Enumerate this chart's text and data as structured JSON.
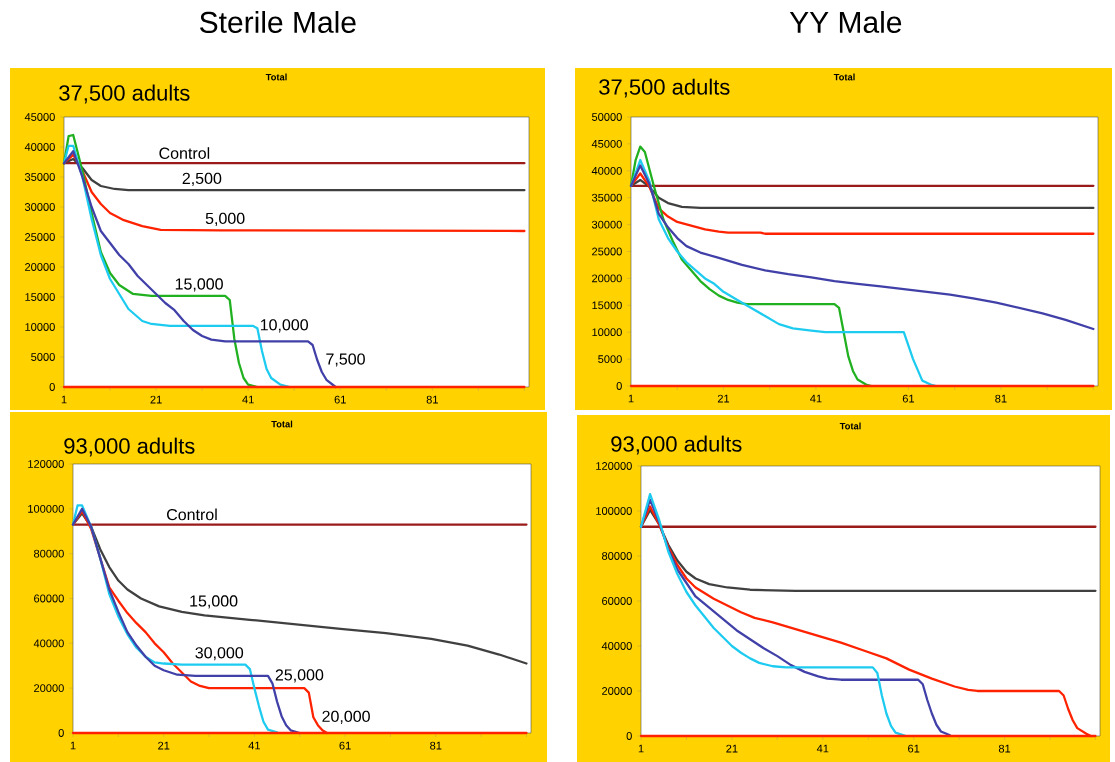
{
  "chart_data": [
    {
      "type": "line",
      "title": "Total",
      "subtitle": "37,500 adults",
      "annotations": [
        "Sterile Male"
      ],
      "marker": "none",
      "xlim": [
        1,
        102
      ],
      "xticks": [
        1,
        {
          "value": 11,
          "label": null
        },
        21,
        {
          "value": 31,
          "label": null
        },
        41,
        {
          "value": 51,
          "label": null
        },
        61,
        {
          "value": 71,
          "label": null
        },
        81,
        {
          "value": 91,
          "label": null
        },
        {
          "value": 101,
          "label": null
        }
      ],
      "ylim": [
        0,
        45000
      ],
      "yticks": [
        0,
        5000,
        10000,
        15000,
        20000,
        25000,
        30000,
        35000,
        40000,
        45000
      ],
      "series": [
        {
          "name": "Control",
          "color": "#9B1B1B",
          "x": [
            1,
            101
          ],
          "values": [
            37300,
            37300
          ]
        },
        {
          "name": "2,500",
          "color": "#404040",
          "x": [
            1,
            3,
            5,
            7,
            9,
            12,
            15,
            101
          ],
          "values": [
            37300,
            38000,
            36500,
            34500,
            33500,
            33000,
            32800,
            32800
          ]
        },
        {
          "name": "5,000",
          "color": "#FF2200",
          "x": [
            1,
            3,
            5,
            7,
            9,
            11,
            14,
            18,
            22,
            35,
            101
          ],
          "values": [
            37300,
            38700,
            36000,
            32500,
            30500,
            29000,
            27800,
            26800,
            26200,
            26100,
            26000
          ]
        },
        {
          "name": "15,000",
          "color": "#20B020",
          "x": [
            1,
            2,
            3,
            5,
            7,
            9,
            11,
            13,
            16,
            20,
            36,
            37,
            38,
            39,
            40,
            41,
            43
          ],
          "values": [
            37300,
            41800,
            42000,
            36000,
            29000,
            22500,
            19000,
            17000,
            15500,
            15200,
            15200,
            14500,
            8000,
            4000,
            1500,
            400,
            0
          ]
        },
        {
          "name": "10,000",
          "color": "#1ECBF0",
          "x": [
            1,
            2,
            3,
            5,
            7,
            9,
            11,
            13,
            15,
            18,
            20,
            24,
            42,
            43,
            44,
            45,
            46,
            48,
            50
          ],
          "values": [
            37300,
            40200,
            40200,
            35000,
            28000,
            22000,
            18000,
            15500,
            13000,
            11000,
            10500,
            10200,
            10200,
            9800,
            6000,
            3000,
            1500,
            400,
            0
          ]
        },
        {
          "name": "7,500",
          "color": "#4040A8",
          "x": [
            1,
            3,
            5,
            7,
            9,
            11,
            13,
            15,
            17,
            19,
            21,
            23,
            25,
            27,
            29,
            31,
            33,
            36,
            54,
            55,
            56,
            57,
            58,
            60
          ],
          "values": [
            37300,
            39300,
            35000,
            30000,
            26000,
            24000,
            22000,
            20500,
            18500,
            17000,
            15500,
            14000,
            12800,
            11000,
            9500,
            8500,
            7900,
            7600,
            7600,
            7000,
            4500,
            2500,
            1200,
            0
          ]
        },
        {
          "color": "#FF2200",
          "x": [
            1,
            101
          ],
          "values": [
            0,
            0
          ]
        }
      ]
    },
    {
      "type": "line",
      "title": "Total",
      "subtitle": "37,500 adults",
      "annotations": [
        "YY Male"
      ],
      "marker": "none",
      "xlim": [
        1,
        102
      ],
      "xticks": [
        1,
        {
          "value": 11,
          "label": null
        },
        21,
        {
          "value": 31,
          "label": null
        },
        41,
        {
          "value": 51,
          "label": null
        },
        61,
        {
          "value": 71,
          "label": null
        },
        81,
        {
          "value": 91,
          "label": null
        },
        {
          "value": 101,
          "label": null
        }
      ],
      "ylim": [
        0,
        50000
      ],
      "yticks": [
        0,
        5000,
        10000,
        15000,
        20000,
        25000,
        30000,
        35000,
        40000,
        45000,
        50000
      ],
      "series": [
        {
          "color": "#9B1B1B",
          "x": [
            1,
            101
          ],
          "values": [
            37200,
            37200
          ]
        },
        {
          "color": "#404040",
          "x": [
            1,
            3,
            5,
            7,
            9,
            12,
            16,
            101
          ],
          "values": [
            37200,
            38300,
            37000,
            35000,
            34000,
            33300,
            33100,
            33100
          ]
        },
        {
          "color": "#FF2200",
          "x": [
            1,
            3,
            5,
            7,
            9,
            11,
            14,
            17,
            20,
            22,
            29,
            30,
            101
          ],
          "values": [
            37200,
            39500,
            37000,
            33000,
            31500,
            30500,
            29800,
            29100,
            28700,
            28500,
            28500,
            28300,
            28300
          ]
        },
        {
          "color": "#20B020",
          "x": [
            1,
            2,
            3,
            4,
            6,
            8,
            10,
            12,
            14,
            16,
            18,
            20,
            22,
            24,
            26,
            45,
            46,
            47,
            48,
            49,
            50,
            52,
            53
          ],
          "values": [
            37200,
            42000,
            44500,
            43500,
            37000,
            31000,
            27000,
            23500,
            21500,
            19500,
            18000,
            16800,
            16000,
            15500,
            15200,
            15200,
            14500,
            10000,
            5500,
            2800,
            1200,
            200,
            0
          ]
        },
        {
          "color": "#1ECBF0",
          "x": [
            1,
            3,
            5,
            7,
            9,
            11,
            13,
            15,
            17,
            19,
            21,
            24,
            27,
            30,
            33,
            36,
            40,
            43,
            60,
            61,
            62,
            63,
            64,
            66,
            67
          ],
          "values": [
            37200,
            42000,
            38000,
            31000,
            27500,
            25000,
            23000,
            21500,
            20000,
            19000,
            17500,
            16000,
            14500,
            13000,
            11500,
            10700,
            10300,
            10000,
            10000,
            7500,
            5000,
            3000,
            1000,
            200,
            0
          ]
        },
        {
          "color": "#4040A8",
          "x": [
            1,
            3,
            5,
            7,
            9,
            11,
            13,
            16,
            20,
            25,
            30,
            35,
            40,
            45,
            50,
            55,
            60,
            65,
            70,
            75,
            80,
            85,
            90,
            95,
            101
          ],
          "values": [
            37200,
            41000,
            37500,
            32000,
            29500,
            27500,
            26000,
            24800,
            23800,
            22500,
            21500,
            20800,
            20200,
            19500,
            19000,
            18500,
            18000,
            17500,
            17000,
            16300,
            15500,
            14500,
            13500,
            12300,
            10600
          ]
        },
        {
          "color": "#FF2200",
          "x": [
            1,
            101
          ],
          "values": [
            0,
            0
          ]
        }
      ]
    },
    {
      "type": "line",
      "title": "Total",
      "subtitle": "93,000 adults",
      "marker": "none",
      "xlim": [
        1,
        102
      ],
      "xticks": [
        1,
        {
          "value": 11,
          "label": null
        },
        21,
        {
          "value": 31,
          "label": null
        },
        41,
        {
          "value": 51,
          "label": null
        },
        61,
        {
          "value": 71,
          "label": null
        },
        81,
        {
          "value": 91,
          "label": null
        },
        {
          "value": 101,
          "label": null
        }
      ],
      "ylim": [
        0,
        120000
      ],
      "yticks": [
        0,
        20000,
        40000,
        60000,
        80000,
        100000,
        120000
      ],
      "series": [
        {
          "name": "Control",
          "color": "#9B1B1B",
          "x": [
            1,
            101
          ],
          "values": [
            93000,
            93000
          ]
        },
        {
          "name": "15,000",
          "color": "#404040",
          "x": [
            1,
            3,
            5,
            7,
            9,
            11,
            13,
            16,
            20,
            25,
            30,
            40,
            50,
            60,
            70,
            80,
            88,
            95,
            101
          ],
          "values": [
            93000,
            98000,
            92000,
            82000,
            74000,
            68000,
            64000,
            60000,
            56500,
            54000,
            52500,
            50500,
            48500,
            46500,
            44500,
            42000,
            39000,
            35000,
            31000
          ]
        },
        {
          "name": "20,000",
          "color": "#FF2200",
          "x": [
            1,
            3,
            5,
            7,
            9,
            11,
            13,
            15,
            17,
            19,
            21,
            23,
            25,
            27,
            29,
            31,
            52,
            53,
            54,
            55,
            56,
            57
          ],
          "values": [
            93000,
            99000,
            91000,
            78000,
            65000,
            59000,
            53500,
            49000,
            45000,
            40000,
            36000,
            31000,
            27000,
            23000,
            21000,
            20000,
            20000,
            18000,
            7000,
            3500,
            1200,
            0
          ]
        },
        {
          "name": "30,000",
          "color": "#1ECBF0",
          "x": [
            1,
            2,
            3,
            5,
            7,
            9,
            11,
            13,
            15,
            17,
            19,
            21,
            25,
            39,
            40,
            41,
            42,
            43,
            44,
            46
          ],
          "values": [
            93000,
            101500,
            101500,
            92000,
            78000,
            62000,
            52000,
            44000,
            38000,
            34000,
            31500,
            31000,
            30500,
            30500,
            28500,
            20000,
            12000,
            5000,
            1500,
            300
          ]
        },
        {
          "name": "25,000",
          "color": "#4040A8",
          "x": [
            1,
            3,
            5,
            7,
            9,
            11,
            13,
            15,
            17,
            19,
            21,
            24,
            28,
            44,
            45,
            46,
            47,
            48,
            49,
            51
          ],
          "values": [
            93000,
            100000,
            92000,
            78000,
            64000,
            54000,
            45000,
            39000,
            34000,
            30000,
            28000,
            26000,
            25500,
            25500,
            22000,
            14000,
            7500,
            3500,
            1200,
            0
          ]
        },
        {
          "color": "#FF2200",
          "x": [
            1,
            101
          ],
          "values": [
            0,
            0
          ]
        }
      ]
    },
    {
      "type": "line",
      "title": "Total",
      "subtitle": "93,000 adults",
      "marker": "none",
      "xlim": [
        1,
        102
      ],
      "xticks": [
        1,
        {
          "value": 11,
          "label": null
        },
        21,
        {
          "value": 31,
          "label": null
        },
        41,
        {
          "value": 51,
          "label": null
        },
        61,
        {
          "value": 71,
          "label": null
        },
        81,
        {
          "value": 91,
          "label": null
        },
        {
          "value": 101,
          "label": null
        }
      ],
      "ylim": [
        0,
        120000
      ],
      "yticks": [
        0,
        20000,
        40000,
        60000,
        80000,
        100000,
        120000
      ],
      "series": [
        {
          "color": "#9B1B1B",
          "x": [
            1,
            101
          ],
          "values": [
            93000,
            93000
          ]
        },
        {
          "color": "#404040",
          "x": [
            1,
            3,
            5,
            7,
            9,
            11,
            13,
            16,
            20,
            25,
            35,
            101
          ],
          "values": [
            93000,
            100500,
            94000,
            85000,
            78000,
            73000,
            70000,
            67500,
            66000,
            65000,
            64500,
            64500
          ]
        },
        {
          "color": "#FF2200",
          "x": [
            1,
            3,
            5,
            7,
            9,
            11,
            13,
            15,
            17,
            20,
            23,
            26,
            30,
            35,
            40,
            45,
            50,
            55,
            60,
            65,
            70,
            73,
            75,
            93,
            94,
            95,
            96,
            97,
            99,
            100
          ],
          "values": [
            93000,
            102000,
            94000,
            84000,
            76000,
            70000,
            66000,
            63500,
            61000,
            58000,
            55000,
            52500,
            50500,
            47500,
            44500,
            41500,
            38000,
            34500,
            29500,
            25500,
            22000,
            20500,
            20000,
            20000,
            18000,
            12000,
            7000,
            3500,
            1000,
            0
          ]
        },
        {
          "color": "#4040A8",
          "x": [
            1,
            3,
            5,
            7,
            9,
            11,
            13,
            16,
            19,
            22,
            25,
            28,
            31,
            34,
            37,
            40,
            42,
            45,
            62,
            63,
            64,
            65,
            66,
            67,
            69
          ],
          "values": [
            93000,
            105000,
            95000,
            83000,
            74000,
            68000,
            62000,
            57000,
            52000,
            47000,
            43000,
            39000,
            35500,
            31500,
            28500,
            26500,
            25500,
            25000,
            25000,
            23000,
            16000,
            10000,
            5000,
            2000,
            300
          ]
        },
        {
          "color": "#1ECBF0",
          "x": [
            1,
            3,
            5,
            7,
            9,
            11,
            13,
            15,
            17,
            19,
            21,
            23,
            25,
            27,
            30,
            33,
            52,
            53,
            54,
            55,
            56,
            57,
            59
          ],
          "values": [
            93000,
            107500,
            96000,
            82000,
            72000,
            64000,
            58000,
            53000,
            48000,
            44000,
            40000,
            37000,
            34500,
            32500,
            31000,
            30500,
            30500,
            28000,
            18000,
            10000,
            4500,
            1500,
            200
          ]
        },
        {
          "color": "#FF2200",
          "x": [
            1,
            101
          ],
          "values": [
            0,
            0
          ]
        }
      ]
    }
  ]
}
